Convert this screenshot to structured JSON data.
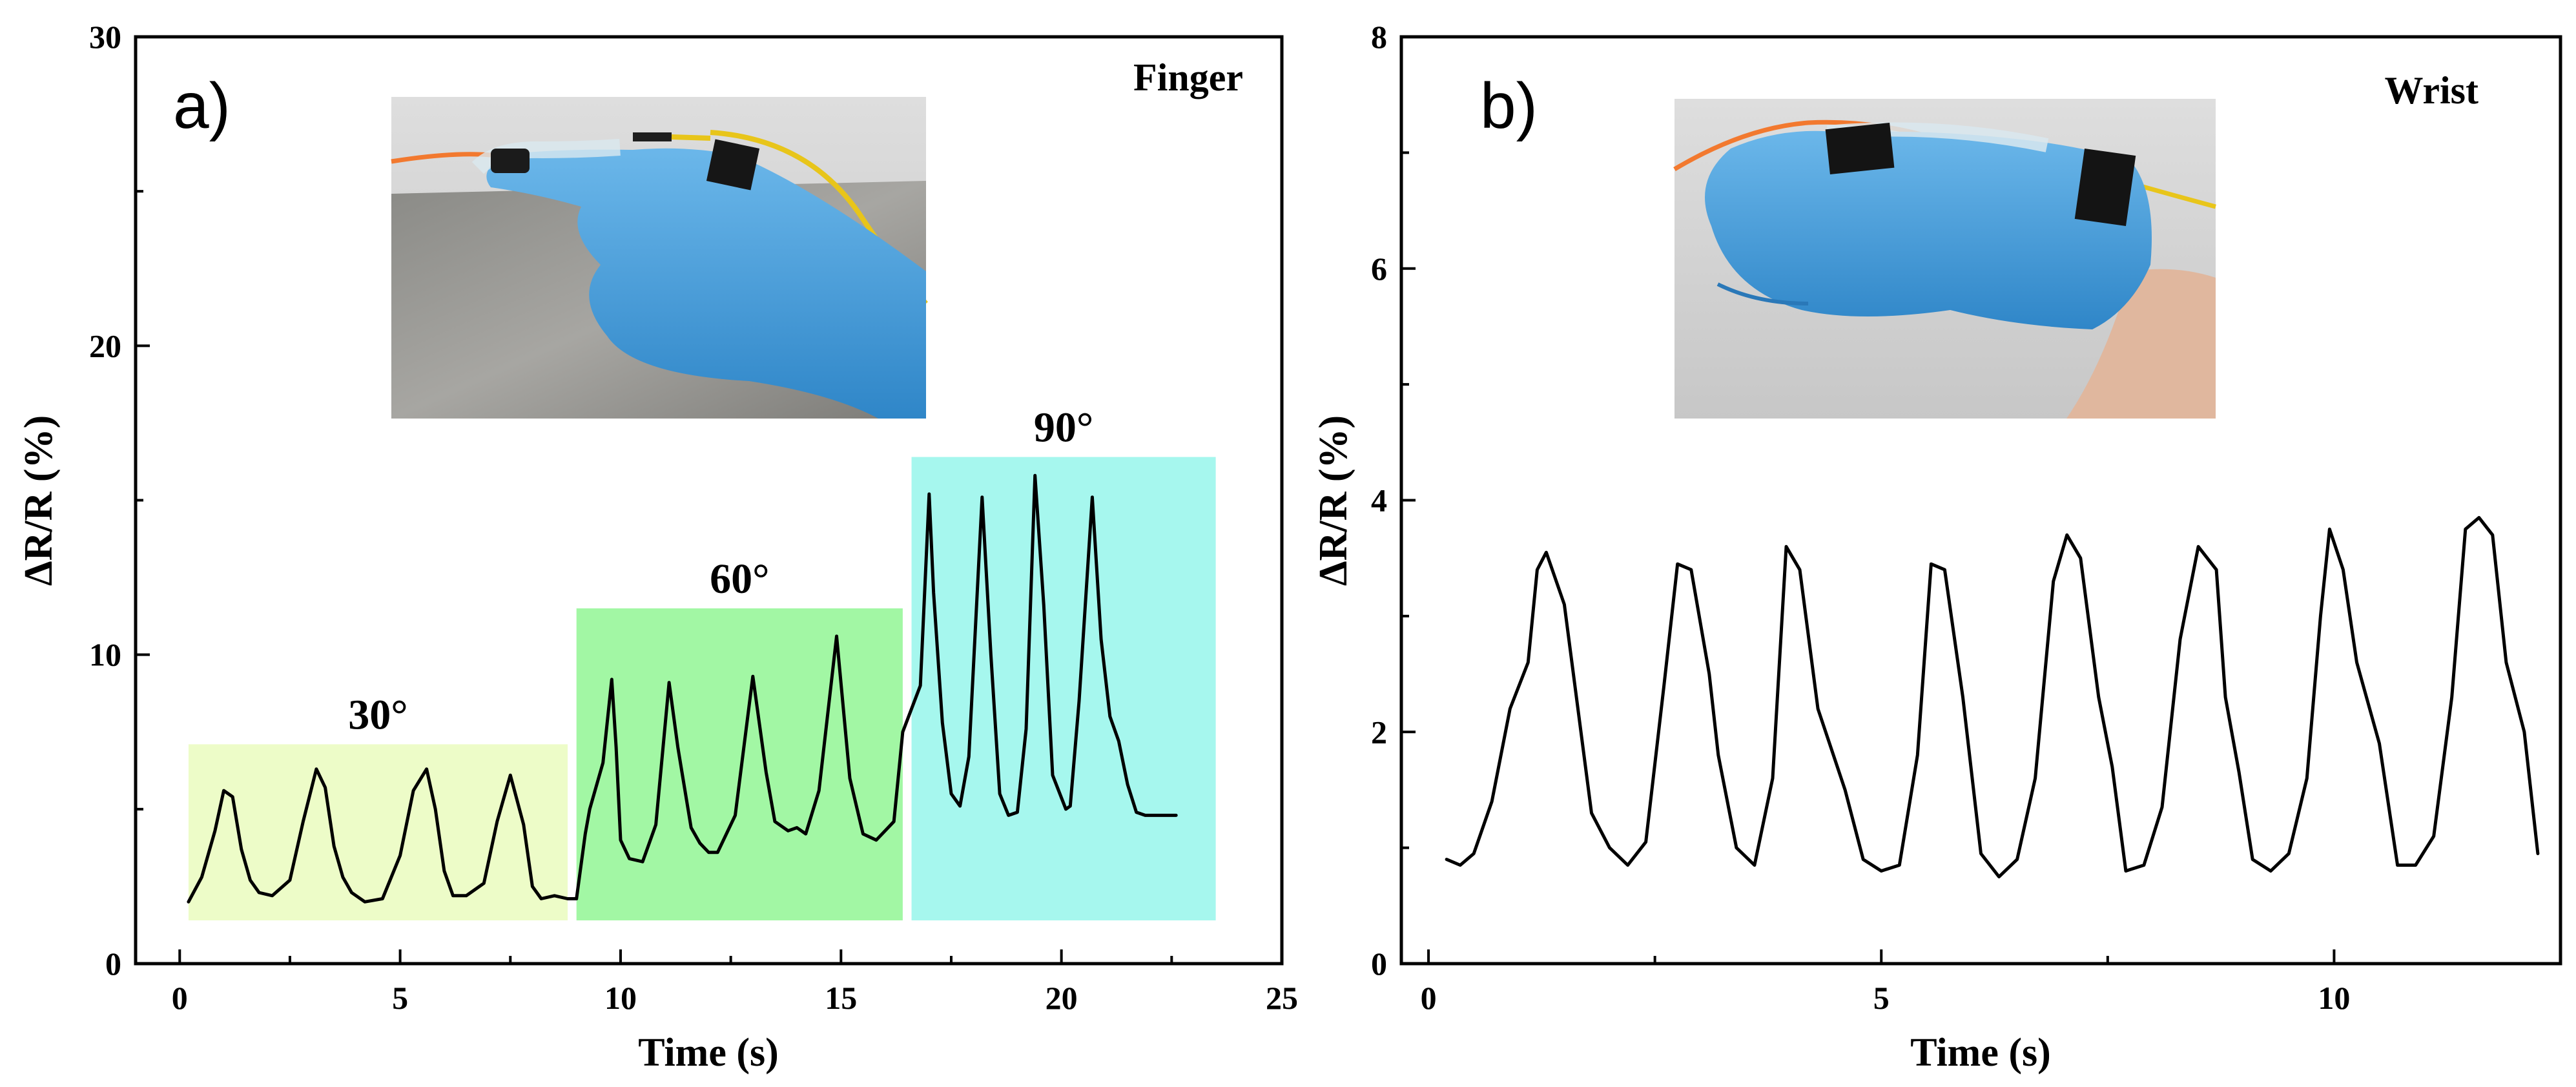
{
  "chart_data": [
    {
      "type": "line",
      "panel_label": "a)",
      "annotation": "Finger",
      "xlabel": "Time (s)",
      "ylabel": "ΔR/R (%)",
      "xlim": [
        -1,
        25
      ],
      "ylim": [
        0,
        30
      ],
      "xticks": [
        0,
        5,
        10,
        15,
        20,
        25
      ],
      "yticks": [
        0,
        10,
        20,
        30
      ],
      "grid": false,
      "inset_photo": "blue-gloved finger with attached sensor wire",
      "regions": [
        {
          "label": "30°",
          "x0": 0.2,
          "x1": 8.8,
          "y0": 1.4,
          "y1": 7.1,
          "color": "#edfcc8"
        },
        {
          "label": "60°",
          "x0": 9.0,
          "x1": 16.4,
          "y0": 1.4,
          "y1": 11.5,
          "color": "#a2f7a4"
        },
        {
          "label": "90°",
          "x0": 16.6,
          "x1": 23.5,
          "y0": 1.4,
          "y1": 16.4,
          "color": "#a6f7ee"
        }
      ],
      "series": [
        {
          "x": [
            0.2,
            0.5,
            0.8,
            1.0,
            1.2,
            1.4,
            1.6,
            1.8,
            2.1,
            2.5,
            2.8,
            3.1,
            3.3,
            3.5,
            3.7,
            3.9,
            4.2,
            4.6,
            5.0,
            5.3,
            5.6,
            5.8,
            6.0,
            6.2,
            6.5,
            6.9,
            7.2,
            7.5,
            7.8,
            8.0,
            8.2,
            8.5,
            8.8,
            9.0,
            9.2,
            9.3,
            9.6,
            9.8,
            9.9,
            10.0,
            10.2,
            10.5,
            10.8,
            11.1,
            11.3,
            11.6,
            11.8,
            12.0,
            12.2,
            12.6,
            13.0,
            13.3,
            13.5,
            13.8,
            14.0,
            14.2,
            14.5,
            14.9,
            15.2,
            15.5,
            15.8,
            16.0,
            16.2,
            16.4,
            16.8,
            17.0,
            17.1,
            17.3,
            17.5,
            17.7,
            17.9,
            18.2,
            18.4,
            18.6,
            18.8,
            19.0,
            19.2,
            19.4,
            19.6,
            19.8,
            20.1,
            20.2,
            20.4,
            20.7,
            20.9,
            21.1,
            21.3,
            21.5,
            21.7,
            21.9,
            22.1,
            22.3,
            22.5,
            22.6
          ],
          "y": [
            2.0,
            2.8,
            4.3,
            5.6,
            5.4,
            3.7,
            2.7,
            2.3,
            2.2,
            2.7,
            4.6,
            6.3,
            5.7,
            3.8,
            2.8,
            2.3,
            2.0,
            2.1,
            3.5,
            5.6,
            6.3,
            5.0,
            3.0,
            2.2,
            2.2,
            2.6,
            4.6,
            6.1,
            4.5,
            2.5,
            2.1,
            2.2,
            2.1,
            2.1,
            4.2,
            5.0,
            6.5,
            9.2,
            7.0,
            4.0,
            3.4,
            3.3,
            4.5,
            9.1,
            7.0,
            4.4,
            3.9,
            3.6,
            3.6,
            4.8,
            9.3,
            6.2,
            4.6,
            4.3,
            4.4,
            4.2,
            5.6,
            10.6,
            6.0,
            4.2,
            4.0,
            4.3,
            4.6,
            7.5,
            9.0,
            15.2,
            12.0,
            7.8,
            5.5,
            5.1,
            6.7,
            15.1,
            10.0,
            5.5,
            4.8,
            4.9,
            7.6,
            15.8,
            11.6,
            6.1,
            5.0,
            5.1,
            8.5,
            15.1,
            10.5,
            8.0,
            7.2,
            5.8,
            4.9,
            4.8,
            4.8,
            4.8,
            4.8,
            4.8
          ]
        }
      ]
    },
    {
      "type": "line",
      "panel_label": "b)",
      "annotation": "Wrist",
      "xlabel": "Time (s)",
      "ylabel": "ΔR/R (%)",
      "xlim": [
        -0.3,
        12.5
      ],
      "ylim": [
        0,
        8
      ],
      "xticks": [
        0,
        5,
        10
      ],
      "yticks": [
        0,
        2,
        4,
        6,
        8
      ],
      "grid": false,
      "inset_photo": "blue-gloved fist with sensor taped across the wrist",
      "series": [
        {
          "x": [
            0.2,
            0.35,
            0.5,
            0.7,
            0.9,
            1.1,
            1.2,
            1.3,
            1.5,
            1.8,
            2.0,
            2.2,
            2.4,
            2.6,
            2.75,
            2.9,
            3.1,
            3.2,
            3.4,
            3.6,
            3.8,
            3.95,
            4.1,
            4.3,
            4.6,
            4.8,
            5.0,
            5.2,
            5.4,
            5.55,
            5.7,
            5.9,
            6.1,
            6.3,
            6.5,
            6.7,
            6.9,
            7.05,
            7.2,
            7.4,
            7.55,
            7.7,
            7.9,
            8.1,
            8.3,
            8.5,
            8.7,
            8.8,
            8.95,
            9.1,
            9.3,
            9.5,
            9.7,
            9.85,
            9.95,
            10.1,
            10.25,
            10.5,
            10.7,
            10.9,
            11.1,
            11.3,
            11.45,
            11.6,
            11.75,
            11.9,
            12.1,
            12.25
          ],
          "y": [
            0.9,
            0.85,
            0.95,
            1.4,
            2.2,
            2.6,
            3.4,
            3.55,
            3.1,
            1.3,
            1.0,
            0.85,
            1.05,
            2.4,
            3.45,
            3.4,
            2.5,
            1.8,
            1.0,
            0.85,
            1.6,
            3.6,
            3.4,
            2.2,
            1.5,
            0.9,
            0.8,
            0.85,
            1.8,
            3.45,
            3.4,
            2.3,
            0.95,
            0.75,
            0.9,
            1.6,
            3.3,
            3.7,
            3.5,
            2.3,
            1.7,
            0.8,
            0.85,
            1.35,
            2.8,
            3.6,
            3.4,
            2.3,
            1.65,
            0.9,
            0.8,
            0.95,
            1.6,
            3.0,
            3.75,
            3.4,
            2.6,
            1.9,
            0.85,
            0.85,
            1.1,
            2.3,
            3.75,
            3.85,
            3.7,
            2.6,
            2.0,
            0.95
          ]
        }
      ]
    }
  ]
}
